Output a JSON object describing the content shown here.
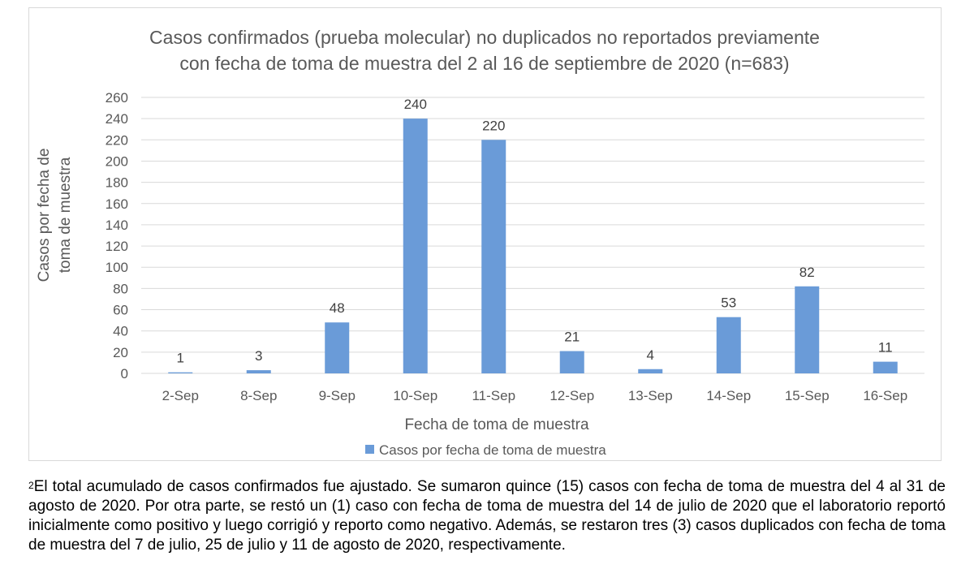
{
  "chart_data": {
    "type": "bar",
    "title_lines": [
      "Casos confirmados (prueba molecular) no duplicados no reportados previamente",
      "con fecha de toma de muestra del 2 al 16 de septiembre de 2020 (n=683)"
    ],
    "categories": [
      "2-Sep",
      "8-Sep",
      "9-Sep",
      "10-Sep",
      "11-Sep",
      "12-Sep",
      "13-Sep",
      "14-Sep",
      "15-Sep",
      "16-Sep"
    ],
    "series": [
      {
        "name": "Casos por fecha de toma de muestra",
        "values": [
          1,
          3,
          48,
          240,
          220,
          21,
          4,
          53,
          82,
          11
        ],
        "color": "#6a9bd8"
      }
    ],
    "xlabel": "Fecha de toma de muestra",
    "ylabel_lines": [
      "Casos por fecha de",
      "toma de muestra"
    ],
    "ylim": [
      0,
      260
    ],
    "yticks": [
      0,
      20,
      40,
      60,
      80,
      100,
      120,
      140,
      160,
      180,
      200,
      220,
      240,
      260
    ],
    "grid": true,
    "legend_position": "bottom",
    "gridline_color": "#d9d9d9"
  },
  "footnote": {
    "marker": "2",
    "text": "El total acumulado de casos confirmados fue ajustado. Se sumaron quince (15) casos con fecha de toma de muestra del 4 al 31 de agosto de 2020. Por otra parte, se restó un (1) caso con fecha de toma de muestra del 14 de julio de 2020 que el laboratorio reportó inicialmente como positivo y luego corrigió y reporto como negativo. Además, se restaron tres (3) casos duplicados con fecha de toma de muestra del 7 de julio, 25 de julio y 11 de agosto de 2020, respectivamente."
  }
}
